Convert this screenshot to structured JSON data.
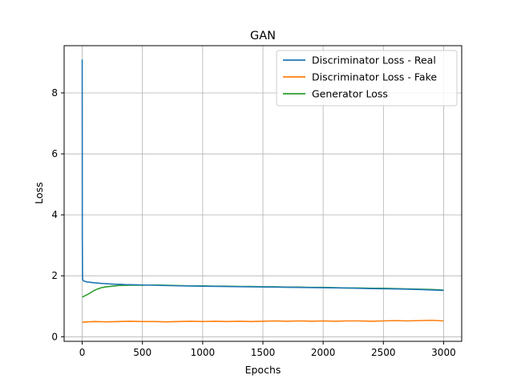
{
  "chart_data": {
    "type": "line",
    "title": "GAN",
    "xlabel": "Epochs",
    "ylabel": "Loss",
    "xlim": [
      -150,
      3150
    ],
    "ylim": [
      -0.15,
      9.55
    ],
    "xticks": [
      0,
      500,
      1000,
      1500,
      2000,
      2500,
      3000
    ],
    "yticks": [
      0,
      2,
      4,
      6,
      8
    ],
    "grid": true,
    "legend_position": "top-right",
    "series": [
      {
        "name": "Discriminator Loss - Real",
        "color": "#1f77b4",
        "x": [
          0,
          1,
          3,
          6,
          10,
          20,
          40,
          60,
          80,
          100,
          130,
          160,
          200,
          240,
          280,
          320,
          360,
          400,
          500,
          600,
          800,
          1000,
          1200,
          1400,
          1600,
          1800,
          2000,
          2200,
          2400,
          2600,
          2800,
          3000
        ],
        "values": [
          9.1,
          3.2,
          1.9,
          1.86,
          1.84,
          1.82,
          1.8,
          1.79,
          1.78,
          1.77,
          1.76,
          1.75,
          1.74,
          1.73,
          1.72,
          1.72,
          1.71,
          1.71,
          1.7,
          1.69,
          1.67,
          1.66,
          1.65,
          1.64,
          1.63,
          1.62,
          1.61,
          1.6,
          1.58,
          1.57,
          1.55,
          1.52
        ]
      },
      {
        "name": "Discriminator Loss - Fake",
        "color": "#ff7f0e",
        "x": [
          0,
          100,
          200,
          300,
          400,
          500,
          600,
          700,
          800,
          900,
          1000,
          1100,
          1200,
          1300,
          1400,
          1500,
          1600,
          1700,
          1800,
          1900,
          2000,
          2100,
          2200,
          2300,
          2400,
          2500,
          2600,
          2700,
          2800,
          2900,
          3000
        ],
        "values": [
          0.48,
          0.5,
          0.49,
          0.5,
          0.51,
          0.5,
          0.5,
          0.49,
          0.5,
          0.51,
          0.5,
          0.51,
          0.5,
          0.51,
          0.5,
          0.51,
          0.52,
          0.51,
          0.52,
          0.51,
          0.52,
          0.51,
          0.52,
          0.52,
          0.51,
          0.52,
          0.53,
          0.52,
          0.53,
          0.54,
          0.52
        ]
      },
      {
        "name": "Generator Loss",
        "color": "#2ca02c",
        "x": [
          0,
          20,
          50,
          80,
          100,
          130,
          160,
          200,
          250,
          300,
          400,
          500,
          600,
          700,
          800,
          900,
          1000,
          1100,
          1200,
          1300,
          1400,
          1500,
          1600,
          1700,
          1800,
          1900,
          2000,
          2100,
          2200,
          2300,
          2400,
          2500,
          2600,
          2700,
          2800,
          2900,
          3000
        ],
        "values": [
          1.3,
          1.34,
          1.4,
          1.47,
          1.52,
          1.57,
          1.61,
          1.64,
          1.66,
          1.68,
          1.69,
          1.69,
          1.7,
          1.69,
          1.68,
          1.67,
          1.67,
          1.66,
          1.66,
          1.65,
          1.65,
          1.64,
          1.64,
          1.63,
          1.63,
          1.62,
          1.62,
          1.61,
          1.6,
          1.6,
          1.59,
          1.59,
          1.58,
          1.57,
          1.56,
          1.55,
          1.53
        ]
      }
    ]
  }
}
